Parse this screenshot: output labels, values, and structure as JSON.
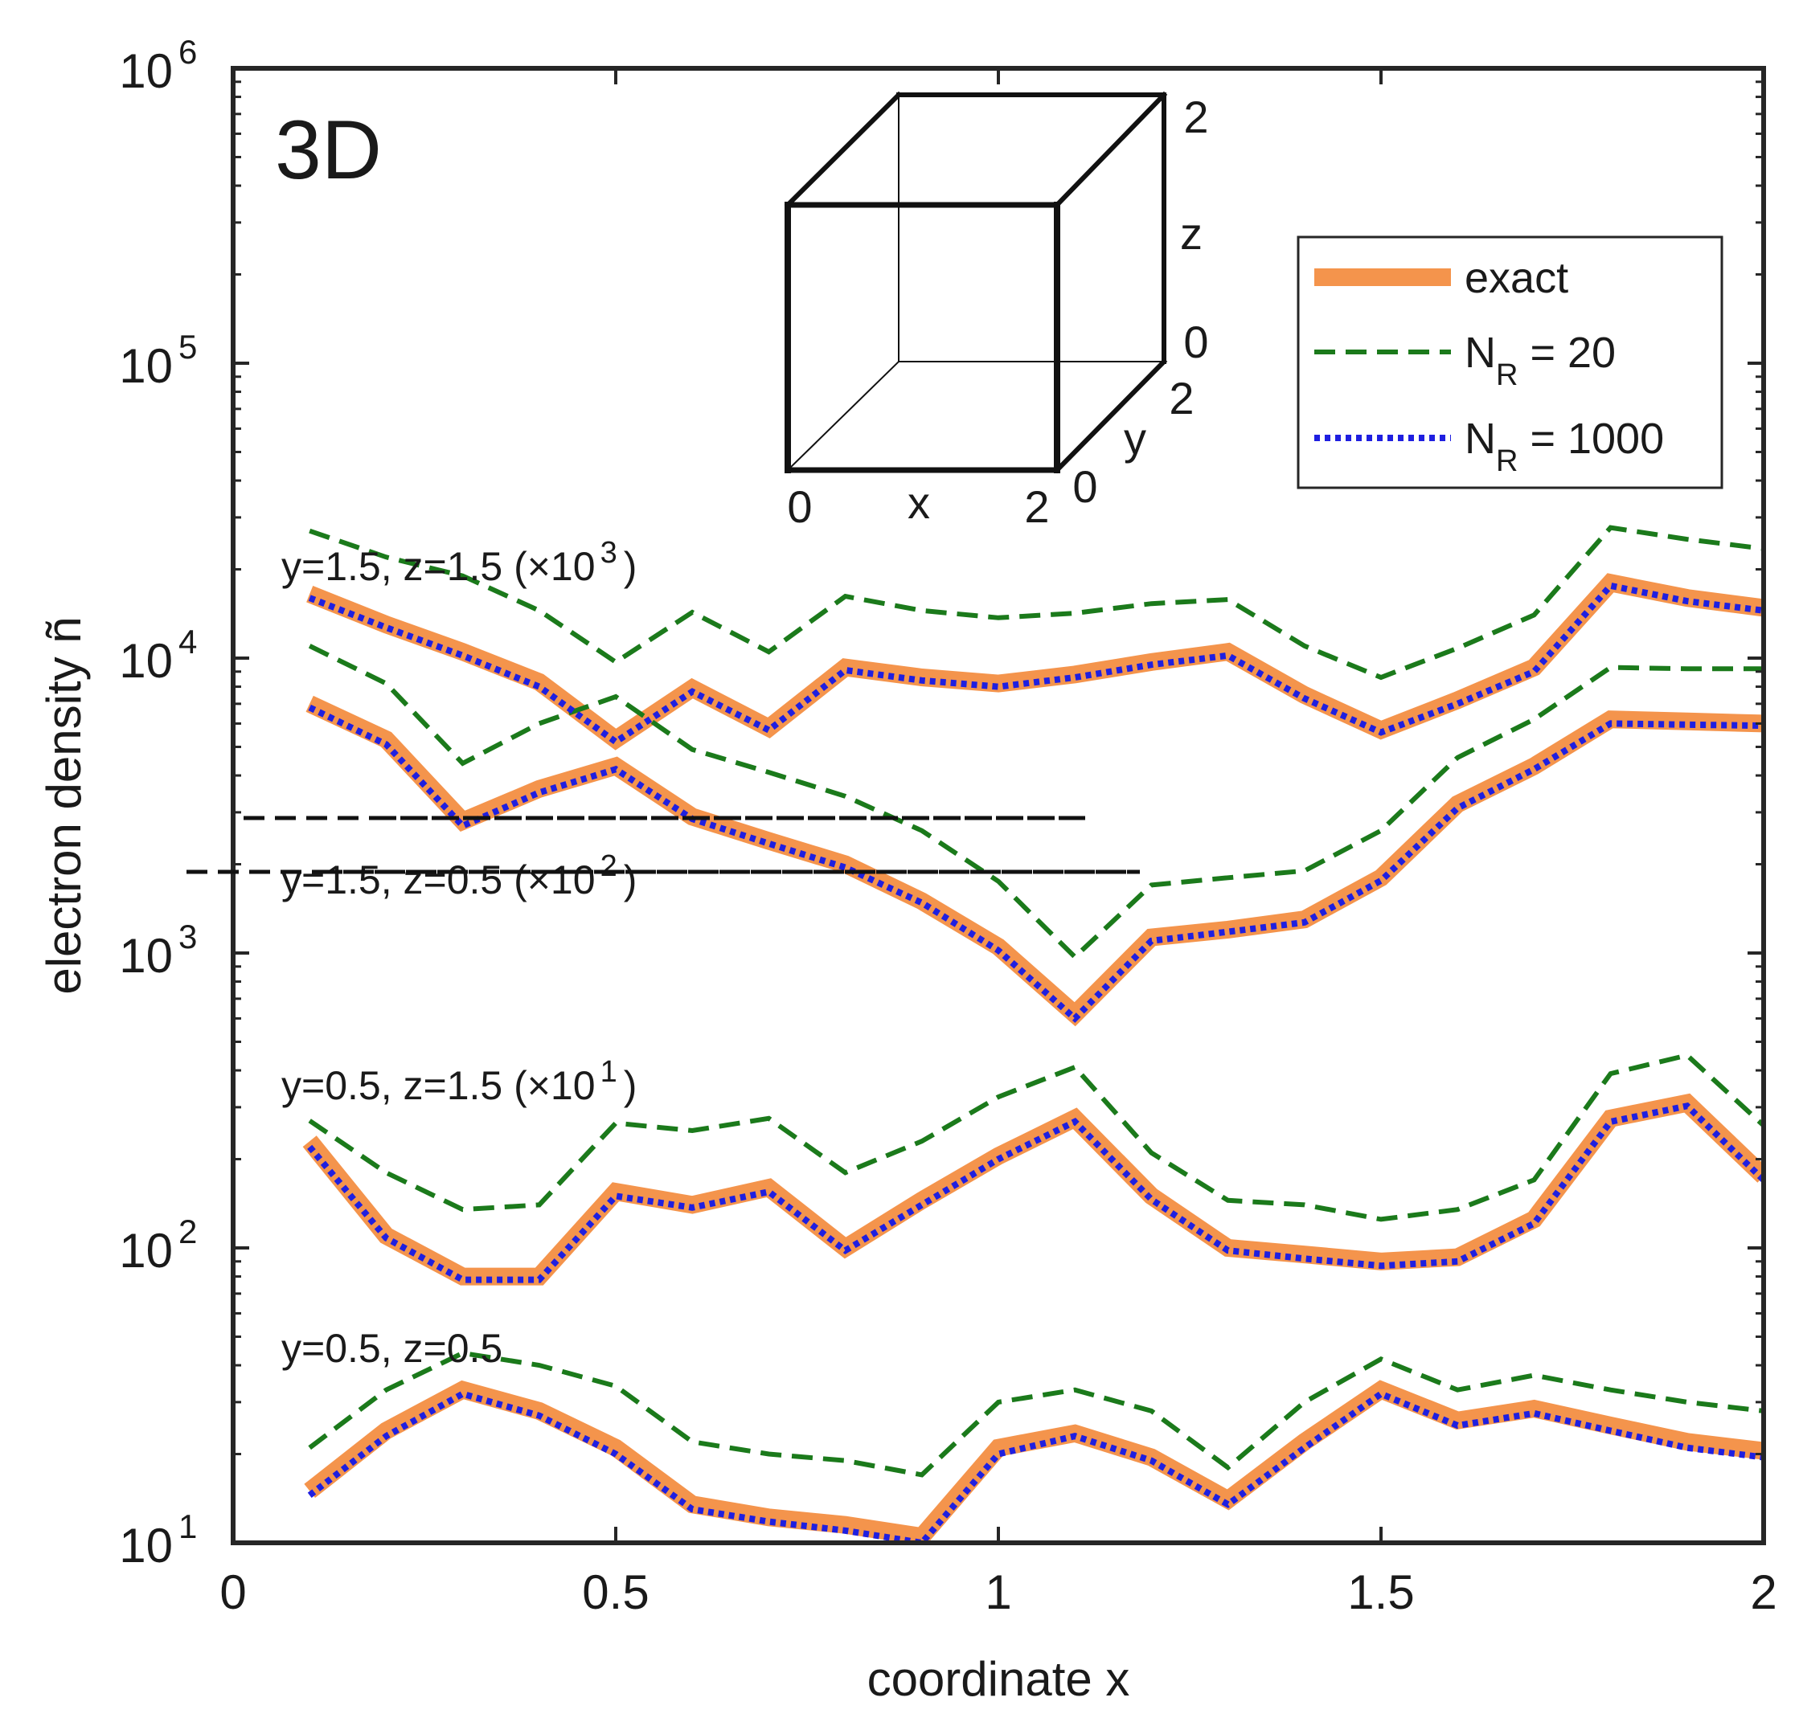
{
  "chart_data": {
    "type": "line",
    "yscale": "log",
    "xlabel": "coordinate x",
    "ylabel": "electron density ñ",
    "xlim": [
      0,
      2
    ],
    "ylim": [
      10,
      1000000
    ],
    "x_ticks": [
      "0",
      "0.5",
      "1",
      "1.5",
      "2"
    ],
    "x_tick_values": [
      0,
      0.5,
      1,
      1.5,
      2
    ],
    "y_ticks": [
      {
        "base": "10",
        "exp": "1",
        "value": 10
      },
      {
        "base": "10",
        "exp": "2",
        "value": 100
      },
      {
        "base": "10",
        "exp": "3",
        "value": 1000
      },
      {
        "base": "10",
        "exp": "4",
        "value": 10000
      },
      {
        "base": "10",
        "exp": "5",
        "value": 100000
      },
      {
        "base": "10",
        "exp": "6",
        "value": 1000000
      }
    ],
    "panel_label": "3D",
    "legend": {
      "position": "top-right",
      "entries": [
        {
          "label": "exact",
          "sub": "",
          "rest": "",
          "color": "#F4944C",
          "style": "solid-thick"
        },
        {
          "label": "N",
          "sub": "R",
          "rest": " = 20",
          "color": "#1B7A1B",
          "style": "dashed"
        },
        {
          "label": "N",
          "sub": "R",
          "rest": " = 1000",
          "color": "#1F1FE0",
          "style": "dotted"
        }
      ]
    },
    "x": [
      0.1,
      0.2,
      0.3,
      0.4,
      0.5,
      0.6,
      0.7,
      0.8,
      0.9,
      1.0,
      1.1,
      1.2,
      1.3,
      1.4,
      1.5,
      1.6,
      1.7,
      1.8,
      1.9,
      2.0
    ],
    "groups": [
      {
        "label": "y=1.5, z=1.5 (×10",
        "label_exp": "3",
        "label_close": ")",
        "series": [
          {
            "name": "exact",
            "values": [
              16500,
              13000,
              10500,
              8300,
              5300,
              7900,
              5800,
              9300,
              8600,
              8200,
              8800,
              9700,
              10500,
              7500,
              5700,
              7200,
              9300,
              18000,
              16000,
              14800
            ]
          },
          {
            "name": "N_R = 20",
            "values": [
              27000,
              22000,
              19000,
              14500,
              9700,
              14300,
              10500,
              16200,
              14500,
              13700,
              14200,
              15300,
              15800,
              11000,
              8600,
              10800,
              14000,
              27700,
              25300,
              23500
            ]
          },
          {
            "name": "N_R = 1000",
            "values": [
              16000,
              12700,
              10200,
              8000,
              5200,
              7700,
              5700,
              9100,
              8400,
              8000,
              8600,
              9500,
              10200,
              7300,
              5600,
              7000,
              9000,
              17600,
              15600,
              14500
            ]
          }
        ]
      },
      {
        "label": "y=1.5, z=0.5 (×10",
        "label_exp": "2",
        "label_close": ")",
        "series": [
          {
            "name": "exact",
            "values": [
              7000,
              5300,
              2800,
              3600,
              4300,
              2900,
              2400,
              2000,
              1500,
              1050,
              620,
              1130,
              1200,
              1300,
              1800,
              3200,
              4300,
              6200,
              6100,
              6000
            ]
          },
          {
            "name": "N_R = 20",
            "values": [
              11000,
              8200,
              4400,
              6000,
              7400,
              4900,
              4100,
              3400,
              2600,
              1750,
              970,
              1700,
              1800,
              1900,
              2600,
              4600,
              6200,
              9300,
              9200,
              9200
            ]
          },
          {
            "name": "N_R = 1000",
            "values": [
              6800,
              5100,
              2700,
              3500,
              4200,
              2850,
              2350,
              1950,
              1480,
              1020,
              600,
              1100,
              1180,
              1270,
              1760,
              3100,
              4200,
              6000,
              5950,
              5900
            ]
          }
        ]
      },
      {
        "label": "y=0.5, z=1.5 (×10",
        "label_exp": "1",
        "label_close": ")",
        "series": [
          {
            "name": "exact",
            "values": [
              230,
              110,
              80,
              80,
              155,
              140,
              160,
              100,
              145,
              205,
              275,
              150,
              100,
              95,
              90,
              93,
              125,
              275,
              310,
              175
            ]
          },
          {
            "name": "N_R = 20",
            "values": [
              270,
              180,
              135,
              140,
              265,
              250,
              275,
              180,
              230,
              325,
              410,
              210,
              145,
              140,
              125,
              135,
              170,
              390,
              450,
              260
            ]
          },
          {
            "name": "N_R = 1000",
            "values": [
              220,
              108,
              78,
              78,
              150,
              137,
              155,
              98,
              140,
              200,
              268,
              146,
              98,
              92,
              87,
              90,
              121,
              268,
              303,
              170
            ]
          }
        ]
      },
      {
        "label": "y=0.5, z=0.5",
        "label_exp": "",
        "label_close": "",
        "series": [
          {
            "name": "exact",
            "values": [
              15,
              24,
              33,
              28,
              21,
              13.5,
              12.2,
              11.5,
              10.5,
              21,
              23.5,
              19.5,
              14,
              22,
              33,
              26,
              28.5,
              25,
              22,
              20.5
            ]
          },
          {
            "name": "N_R = 20",
            "values": [
              21,
              33,
              44,
              40,
              34,
              22,
              20,
              19,
              17,
              30,
              33,
              28,
              18,
              30,
              42,
              33,
              37,
              33,
              30,
              28
            ]
          },
          {
            "name": "N_R = 1000",
            "values": [
              14.5,
              23,
              32,
              27,
              20,
              13,
              11.8,
              11,
              10,
              20,
              23,
              19,
              13.5,
              21,
              32,
              25,
              27.5,
              24,
              21,
              19.5
            ]
          }
        ]
      }
    ],
    "inset": {
      "x_min_label": "0",
      "x_label": "x",
      "x_max_label": "2",
      "y_min_label": "0",
      "y_label": "y",
      "y_max_label": "2",
      "z_min_label": "0",
      "z_label": "z",
      "z_max_label": "2"
    }
  }
}
